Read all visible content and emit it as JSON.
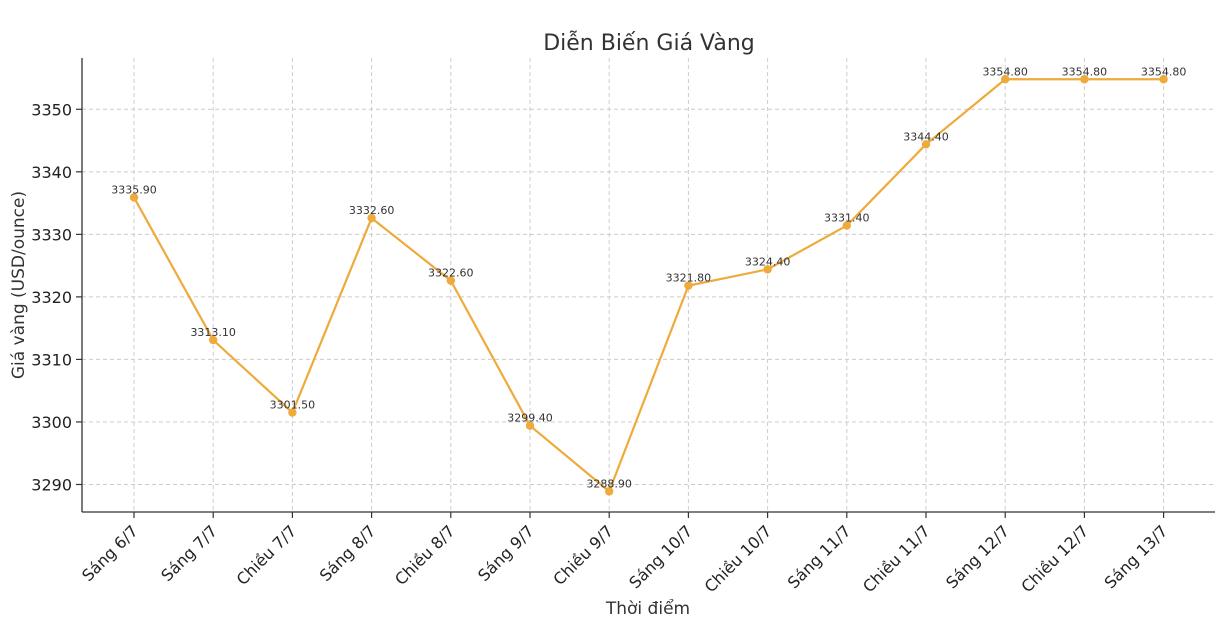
{
  "chart_data": {
    "type": "line",
    "title": "Diễn Biến Giá Vàng",
    "xlabel": "Thời điểm",
    "ylabel": "Giá vàng (USD/ounce)",
    "categories": [
      "Sáng 6/7",
      "Sáng 7/7",
      "Chiều 7/7",
      "Sáng 8/7",
      "Chiều 8/7",
      "Sáng 9/7",
      "Chiều 9/7",
      "Sáng 10/7",
      "Chiều 10/7",
      "Sáng 11/7",
      "Chiều 11/7",
      "Sáng 12/7",
      "Chiều 12/7",
      "Sáng 13/7"
    ],
    "values": [
      3335.9,
      3313.1,
      3301.5,
      3332.6,
      3322.6,
      3299.4,
      3288.9,
      3321.8,
      3324.4,
      3331.4,
      3344.4,
      3354.8,
      3354.8,
      3354.8
    ],
    "data_labels": [
      "3335.90",
      "3313.10",
      "3301.50",
      "3332.60",
      "3322.60",
      "3299.40",
      "3288.90",
      "3321.80",
      "3324.40",
      "3331.40",
      "3344.40",
      "3354.80",
      "3354.80",
      "3354.80"
    ],
    "yticks": [
      3290,
      3300,
      3310,
      3320,
      3330,
      3340,
      3350
    ],
    "ylim": [
      3285.6,
      3358.2
    ],
    "grid": true,
    "line_color": "#EEAA3A"
  }
}
